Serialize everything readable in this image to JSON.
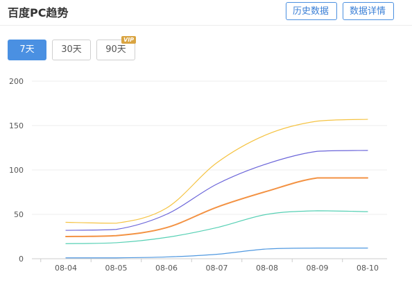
{
  "header": {
    "title": "百度PC趋势",
    "history_button": "历史数据",
    "detail_button": "数据详情"
  },
  "range_tabs": [
    {
      "label": "7天",
      "active": true
    },
    {
      "label": "30天",
      "active": false
    },
    {
      "label": "90天",
      "active": false,
      "badge": "VIP"
    }
  ],
  "chart_data": {
    "type": "line",
    "categories": [
      "08-04",
      "08-05",
      "08-06",
      "08-07",
      "08-08",
      "08-09",
      "08-10"
    ],
    "ylim": [
      0,
      200
    ],
    "yticks": [
      "0",
      "50",
      "100",
      "150",
      "200"
    ],
    "grid": true,
    "series": [
      {
        "color": "#f5c342",
        "values": [
          41,
          40,
          57,
          108,
          140,
          155,
          157
        ]
      },
      {
        "color": "#6a64d9",
        "values": [
          32,
          33,
          50,
          84,
          107,
          121,
          122
        ]
      },
      {
        "color": "#f39243",
        "values": [
          25,
          26,
          35,
          58,
          76,
          91,
          91
        ]
      },
      {
        "color": "#56d0b4",
        "values": [
          17,
          18,
          24,
          35,
          50,
          54,
          53
        ]
      },
      {
        "color": "#4f98e0",
        "values": [
          1,
          1,
          2,
          5,
          11,
          12,
          12
        ]
      }
    ]
  }
}
